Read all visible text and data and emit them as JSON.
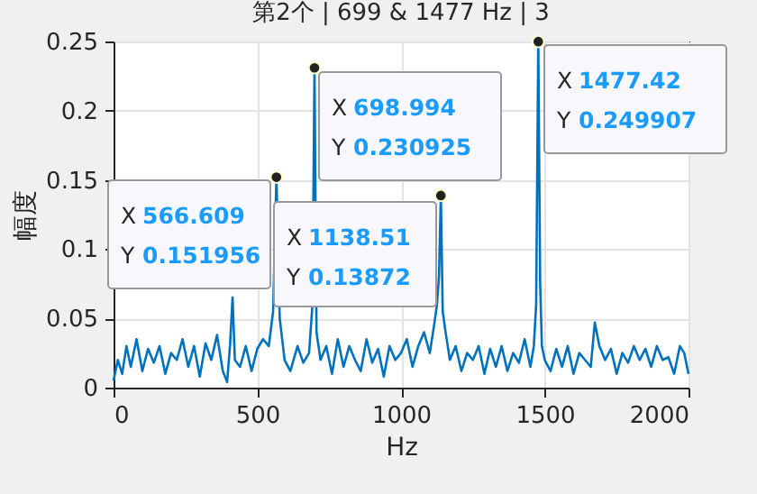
{
  "chart_data": {
    "type": "line",
    "title": "第2个 | 699 & 1477 Hz | 3",
    "xlabel": "Hz",
    "ylabel": "幅度",
    "xlim": [
      0,
      2000
    ],
    "xticks": [
      0,
      500,
      1000,
      1500,
      2000
    ],
    "ylim": [
      0,
      0.25
    ],
    "yticks": [
      0,
      0.05,
      0.1,
      0.15,
      0.2,
      0.25
    ],
    "grid": true,
    "series": [
      {
        "color": "#0072bd",
        "x": [
          0,
          15,
          30,
          45,
          60,
          80,
          100,
          120,
          140,
          160,
          180,
          200,
          220,
          240,
          260,
          280,
          300,
          320,
          340,
          360,
          380,
          395,
          405,
          414,
          422,
          440,
          460,
          480,
          500,
          520,
          540,
          555,
          566.609,
          578,
          595,
          615,
          640,
          660,
          680,
          692,
          698.994,
          706,
          720,
          740,
          760,
          780,
          800,
          820,
          840,
          860,
          880,
          900,
          920,
          940,
          960,
          980,
          1000,
          1020,
          1040,
          1060,
          1080,
          1100,
          1115,
          1125,
          1132,
          1138.51,
          1145,
          1155,
          1170,
          1190,
          1210,
          1230,
          1250,
          1270,
          1290,
          1310,
          1330,
          1350,
          1370,
          1390,
          1410,
          1430,
          1450,
          1462,
          1470,
          1477.42,
          1484,
          1490,
          1500,
          1520,
          1540,
          1560,
          1580,
          1600,
          1620,
          1640,
          1660,
          1674,
          1690,
          1710,
          1730,
          1750,
          1770,
          1790,
          1810,
          1830,
          1850,
          1870,
          1890,
          1910,
          1930,
          1950,
          1970,
          1985,
          2000
        ],
        "values": [
          0.005,
          0.02,
          0.01,
          0.03,
          0.015,
          0.035,
          0.012,
          0.028,
          0.018,
          0.03,
          0.01,
          0.025,
          0.02,
          0.035,
          0.015,
          0.03,
          0.008,
          0.032,
          0.02,
          0.038,
          0.012,
          0.004,
          0.03,
          0.065,
          0.02,
          0.015,
          0.03,
          0.012,
          0.028,
          0.035,
          0.03,
          0.055,
          0.151956,
          0.05,
          0.02,
          0.012,
          0.03,
          0.018,
          0.025,
          0.06,
          0.230925,
          0.04,
          0.02,
          0.03,
          0.01,
          0.035,
          0.015,
          0.03,
          0.02,
          0.012,
          0.035,
          0.018,
          0.028,
          0.008,
          0.03,
          0.02,
          0.025,
          0.035,
          0.015,
          0.03,
          0.04,
          0.025,
          0.045,
          0.06,
          0.08,
          0.13872,
          0.055,
          0.04,
          0.02,
          0.03,
          0.012,
          0.025,
          0.02,
          0.03,
          0.01,
          0.028,
          0.015,
          0.03,
          0.012,
          0.025,
          0.018,
          0.035,
          0.015,
          0.03,
          0.06,
          0.249907,
          0.075,
          0.03,
          0.02,
          0.012,
          0.028,
          0.015,
          0.03,
          0.01,
          0.025,
          0.02,
          0.015,
          0.047,
          0.03,
          0.02,
          0.028,
          0.01,
          0.025,
          0.018,
          0.03,
          0.02,
          0.028,
          0.015,
          0.03,
          0.02,
          0.022,
          0.01,
          0.03,
          0.025,
          0.01
        ]
      }
    ],
    "annotations": [
      {
        "text": "X 566.609\nY 0.151956",
        "x": 566.609,
        "y": 0.151956
      },
      {
        "text": "X 698.994\nY 0.230925",
        "x": 698.994,
        "y": 0.230925
      },
      {
        "text": "X 1138.51\nY 0.13872",
        "x": 1138.51,
        "y": 0.13872
      },
      {
        "text": "X 1477.42\nY 0.249907",
        "x": 1477.42,
        "y": 0.249907
      }
    ]
  }
}
